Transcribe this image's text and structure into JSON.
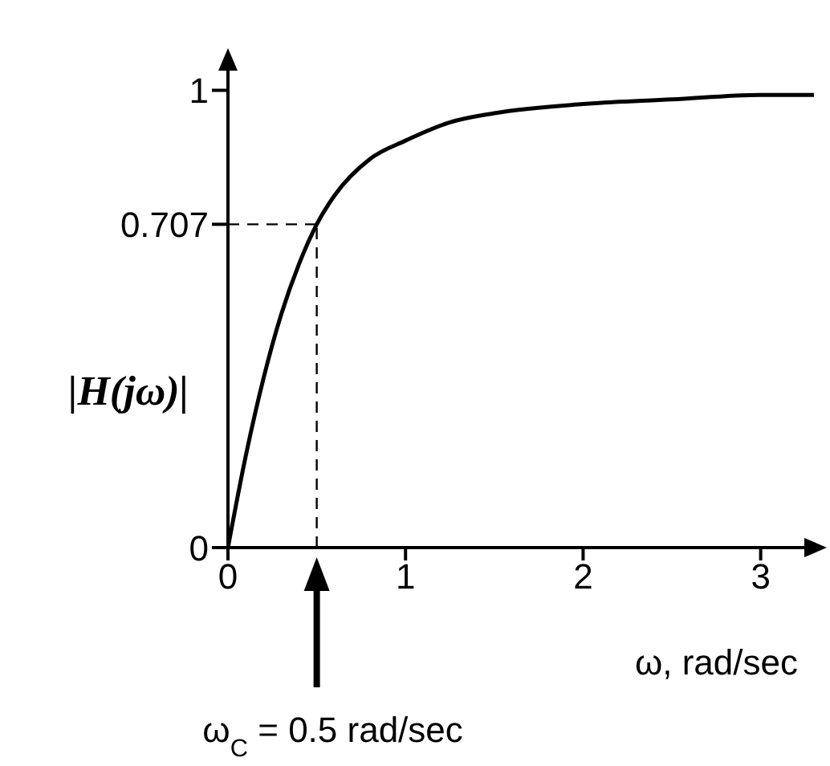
{
  "chart_data": {
    "type": "line",
    "xlabel": "ω, rad/sec",
    "ylabel": "|H(jω)|",
    "x": [
      0,
      0.1,
      0.2,
      0.3,
      0.4,
      0.5,
      0.6,
      0.8,
      1,
      1.25,
      1.5,
      2,
      2.5,
      3,
      3.3
    ],
    "series": [
      {
        "color": "#000000",
        "values": [
          0,
          0.2,
          0.37,
          0.51,
          0.62,
          0.707,
          0.77,
          0.85,
          0.89,
          0.93,
          0.95,
          0.97,
          0.98,
          0.99,
          0.99
        ]
      }
    ],
    "xlim": [
      0,
      3.3
    ],
    "ylim": [
      0,
      1.05
    ],
    "xticks": [
      0,
      1,
      2,
      3
    ],
    "yticks": [
      0,
      0.707,
      1
    ],
    "ref_lines": [
      {
        "axis": "y",
        "value": 0.707,
        "line_style": "dashed",
        "color": "#000000"
      },
      {
        "axis": "x",
        "value": 0.5,
        "line_style": "dashed",
        "color": "#000000"
      }
    ],
    "annotations": [
      "ω$_{C}$ = 0.5 rad/sec"
    ],
    "grid": false,
    "legend": false,
    "marker": "none",
    "line_style": "solid"
  }
}
